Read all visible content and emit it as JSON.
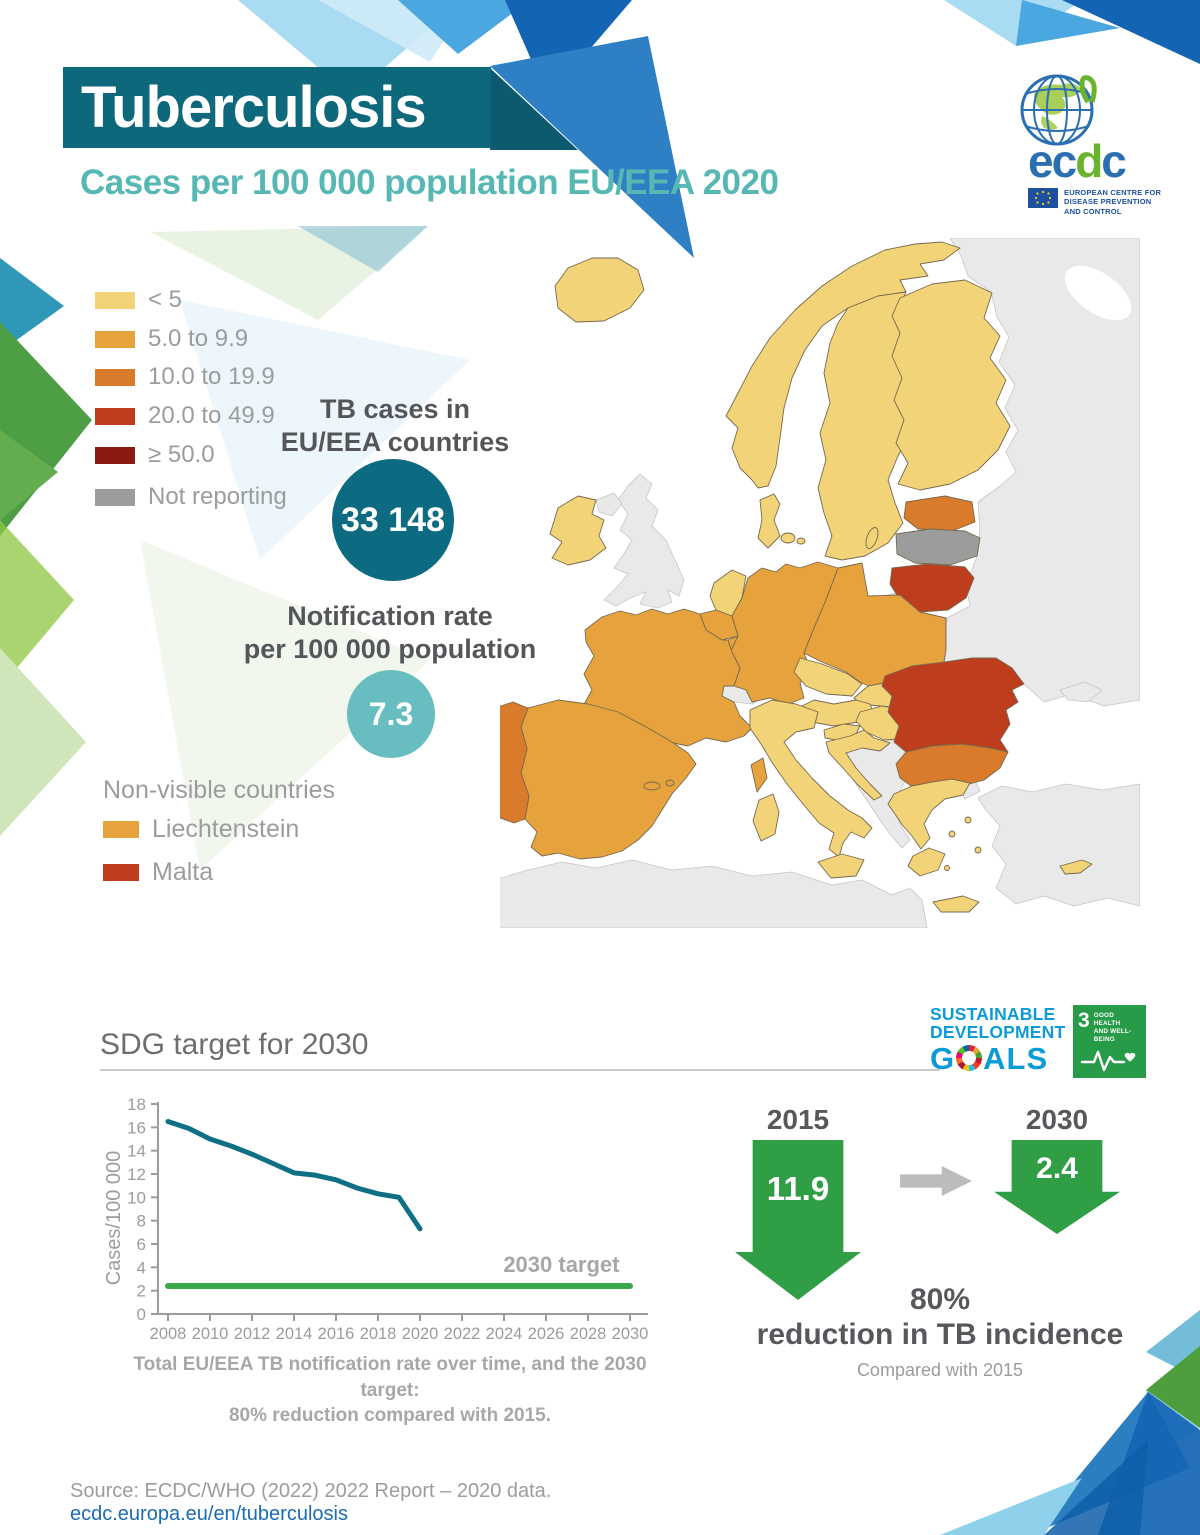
{
  "page": {
    "title": "Tuberculosis",
    "subtitle": "Cases per 100 000 population EU/EEA 2020"
  },
  "ecdc_logo": {
    "letters": [
      "e",
      "c",
      "d",
      "c"
    ],
    "caption_line1": "EUROPEAN CENTRE FOR",
    "caption_line2": "DISEASE PREVENTION",
    "caption_line3": "AND CONTROL"
  },
  "legend": {
    "items": [
      {
        "label": "< 5",
        "color": "#f2d377"
      },
      {
        "label": "5.0 to 9.9",
        "color": "#e6a33d"
      },
      {
        "label": "10.0 to 19.9",
        "color": "#d97b2a"
      },
      {
        "label": "20.0 to 49.9",
        "color": "#bd3d1d"
      },
      {
        "label": "≥ 50.0",
        "color": "#8c1a13"
      },
      {
        "label": "Not reporting",
        "color": "#9c9c9c"
      }
    ]
  },
  "stats": {
    "cases_label_line1": "TB cases in",
    "cases_label_line2": "EU/EEA countries",
    "cases_value": "33 148",
    "cases_circle_color": "#0d6b81",
    "rate_label_line1": "Notification rate",
    "rate_label_line2": "per 100 000 population",
    "rate_value": "7.3",
    "rate_circle_color": "#67bdbf"
  },
  "non_visible": {
    "title": "Non-visible countries",
    "items": [
      {
        "label": "Liechtenstein",
        "color": "#e6a33d"
      },
      {
        "label": "Malta",
        "color": "#bd3d1d"
      }
    ]
  },
  "map": {
    "category_colors": {
      "lt5": "#f2d377",
      "r5_9": "#e6a33d",
      "r10_19": "#d97b2a",
      "r20_49": "#bd3d1d",
      "ge50": "#8c1a13",
      "not_reporting": "#9c9c9c",
      "non_eu": "#e9e9e9"
    },
    "countries": {
      "iceland": "lt5",
      "norway": "lt5",
      "sweden": "lt5",
      "gotland": "lt5",
      "finland": "lt5",
      "denmark": "lt5",
      "denmark_isles": "lt5",
      "ireland": "lt5",
      "netherlands": "lt5",
      "czechia": "lt5",
      "slovakia": "lt5",
      "austria": "lt5",
      "hungary": "lt5",
      "slovenia": "lt5",
      "croatia": "lt5",
      "italy": "lt5",
      "sardinia": "lt5",
      "sicily": "lt5",
      "greece": "lt5",
      "peloponnese": "lt5",
      "crete": "lt5",
      "greek_islands": "lt5",
      "cyprus": "lt5",
      "france": "r5_9",
      "corsica": "r5_9",
      "belgium": "r5_9",
      "luxembourg": "r5_9",
      "germany": "r5_9",
      "poland": "r5_9",
      "spain": "r5_9",
      "balearics": "r5_9",
      "portugal": "r10_19",
      "estonia": "r10_19",
      "bulgaria": "r10_19",
      "lithuania": "r20_49",
      "romania": "r20_49",
      "latvia": "not_reporting",
      "uk": "non_eu",
      "n_ireland": "non_eu",
      "switzerland": "non_eu",
      "russia_east": "non_eu",
      "kaliningrad": "non_eu",
      "crimea": "non_eu",
      "balkans": "non_eu",
      "turkey": "non_eu",
      "turkey_eu": "non_eu",
      "north_africa": "non_eu"
    }
  },
  "sdg": {
    "heading": "SDG target for 2030",
    "logo_line1": "SUSTAINABLE",
    "logo_line2": "DEVELOPMENT",
    "goals_g": "G",
    "goals_als": "ALS",
    "goal_number": "3",
    "goal_label_line1": "GOOD HEALTH",
    "goal_label_line2": "AND WELL-BEING"
  },
  "chart_data": {
    "type": "line",
    "title": "SDG target for 2030",
    "xlabel": "",
    "ylabel": "Cases/100 000",
    "ylim": [
      0,
      18
    ],
    "y_ticks": [
      0,
      2,
      4,
      6,
      8,
      10,
      12,
      14,
      16,
      18
    ],
    "x_ticks": [
      2008,
      2010,
      2012,
      2014,
      2016,
      2018,
      2020,
      2022,
      2024,
      2026,
      2028,
      2030
    ],
    "grid": false,
    "series": [
      {
        "name": "Total EU/EEA TB notification rate",
        "color": "#0f6f85",
        "x": [
          2008,
          2009,
          2010,
          2011,
          2012,
          2013,
          2014,
          2015,
          2016,
          2017,
          2018,
          2019,
          2020
        ],
        "values": [
          16.5,
          15.9,
          15.0,
          14.4,
          13.7,
          12.9,
          12.1,
          11.9,
          11.5,
          10.8,
          10.3,
          10.0,
          7.3
        ]
      },
      {
        "name": "2030 target",
        "label": "2030 target",
        "color": "#3ba74a",
        "x": [
          2008,
          2030
        ],
        "values": [
          2.4,
          2.4
        ]
      }
    ]
  },
  "chart_caption": {
    "line1": "Total EU/EEA TB notification rate over time, and the 2030 target:",
    "line2": "80% reduction compared with 2015."
  },
  "comparison": {
    "from_year": "2015",
    "from_value": "11.9",
    "to_year": "2030",
    "to_value": "2.4",
    "headline_pct": "80%",
    "headline_text": "reduction in TB incidence",
    "footnote": "Compared with 2015"
  },
  "source": {
    "text": "Source: ECDC/WHO (2022) 2022 Report – 2020 data.",
    "link": "ecdc.europa.eu/en/tuberculosis"
  }
}
